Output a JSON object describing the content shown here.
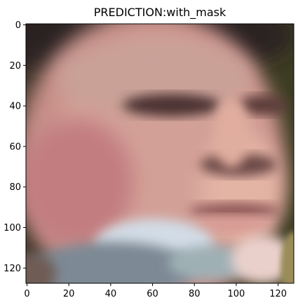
{
  "title": "PREDICTION:with_mask",
  "image": {
    "description_semantic": "blurry-face-with-mask",
    "x_range": [
      0,
      127
    ],
    "y_range": [
      0,
      127
    ],
    "x_ticks": [
      "0",
      "20",
      "40",
      "60",
      "80",
      "100",
      "120"
    ],
    "y_ticks": [
      "0",
      "20",
      "40",
      "60",
      "80",
      "100",
      "120"
    ],
    "x_tick_values": [
      0,
      20,
      40,
      60,
      80,
      100,
      120
    ],
    "y_tick_values": [
      0,
      20,
      40,
      60,
      80,
      100,
      120
    ]
  },
  "colors": {
    "skin_light": "#d9a79d",
    "skin_mid": "#c98f8a",
    "skin_shadow": "#8a6862",
    "hair_dark": "#2f2623",
    "background_dark": "#3a3125",
    "mask_light": "#cfd9e3",
    "mask_gray": "#7e8b96",
    "lip": "#9c5a5c",
    "eye": "#4a3230"
  }
}
